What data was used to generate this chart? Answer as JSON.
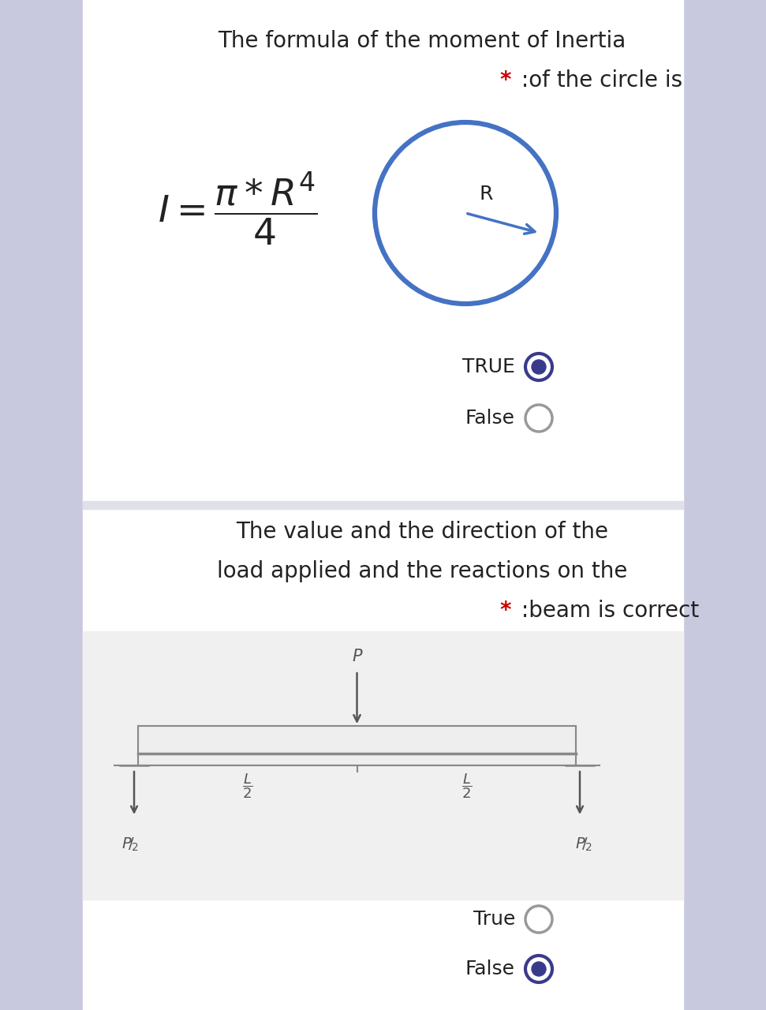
{
  "bg_color": "#e8e8f0",
  "white_panel": "#ffffff",
  "lavender_bar": "#c8c8de",
  "section1": {
    "title_line1": "The formula of the moment of Inertia",
    "title_line2_star": "*",
    "title_line2_text": " :of the circle is",
    "circle_color": "#4472c4",
    "arrow_color": "#4472c4",
    "R_label": "R",
    "true_label": "TRUE",
    "false_label": "False",
    "true_selected": true,
    "false_selected": false
  },
  "section2": {
    "title_line1": "The value and the direction of the",
    "title_line2": "load applied and the reactions on the",
    "title_line3_star": "*",
    "title_line3_text": " :beam is correct",
    "true_label": "True",
    "false_label": "False",
    "true_selected": false,
    "false_selected": true
  },
  "radio_selected_color": "#3a3a8c",
  "radio_unselected_color": "#999999",
  "star_color": "#cc0000",
  "text_color": "#222222",
  "diagram_color": "#888888"
}
